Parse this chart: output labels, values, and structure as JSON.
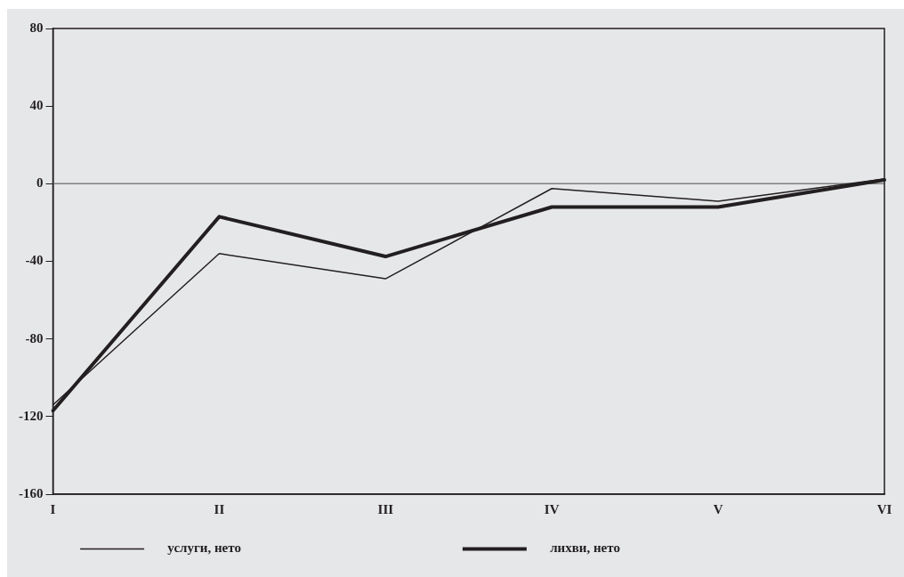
{
  "chart_data": {
    "type": "line",
    "categories": [
      "I",
      "II",
      "III",
      "IV",
      "V",
      "VI"
    ],
    "series": [
      {
        "name": "услуги, нето",
        "color": "#231f20",
        "values": [
          -114,
          -36,
          -49,
          -2.5,
          -9,
          2.5
        ]
      },
      {
        "name": "лихви, нето",
        "color": "#231f20",
        "values": [
          -117,
          -17,
          -37.5,
          -12,
          -12,
          2
        ]
      }
    ],
    "ylim": [
      -160,
      80
    ],
    "yticks": [
      -160,
      -120,
      -80,
      -40,
      0,
      40,
      80
    ],
    "ref_lines": [
      {
        "axis": "y",
        "value": 0,
        "color": "#808080"
      }
    ],
    "grid": false,
    "legend": "bottom",
    "marker": "none",
    "line_style": "solid"
  }
}
